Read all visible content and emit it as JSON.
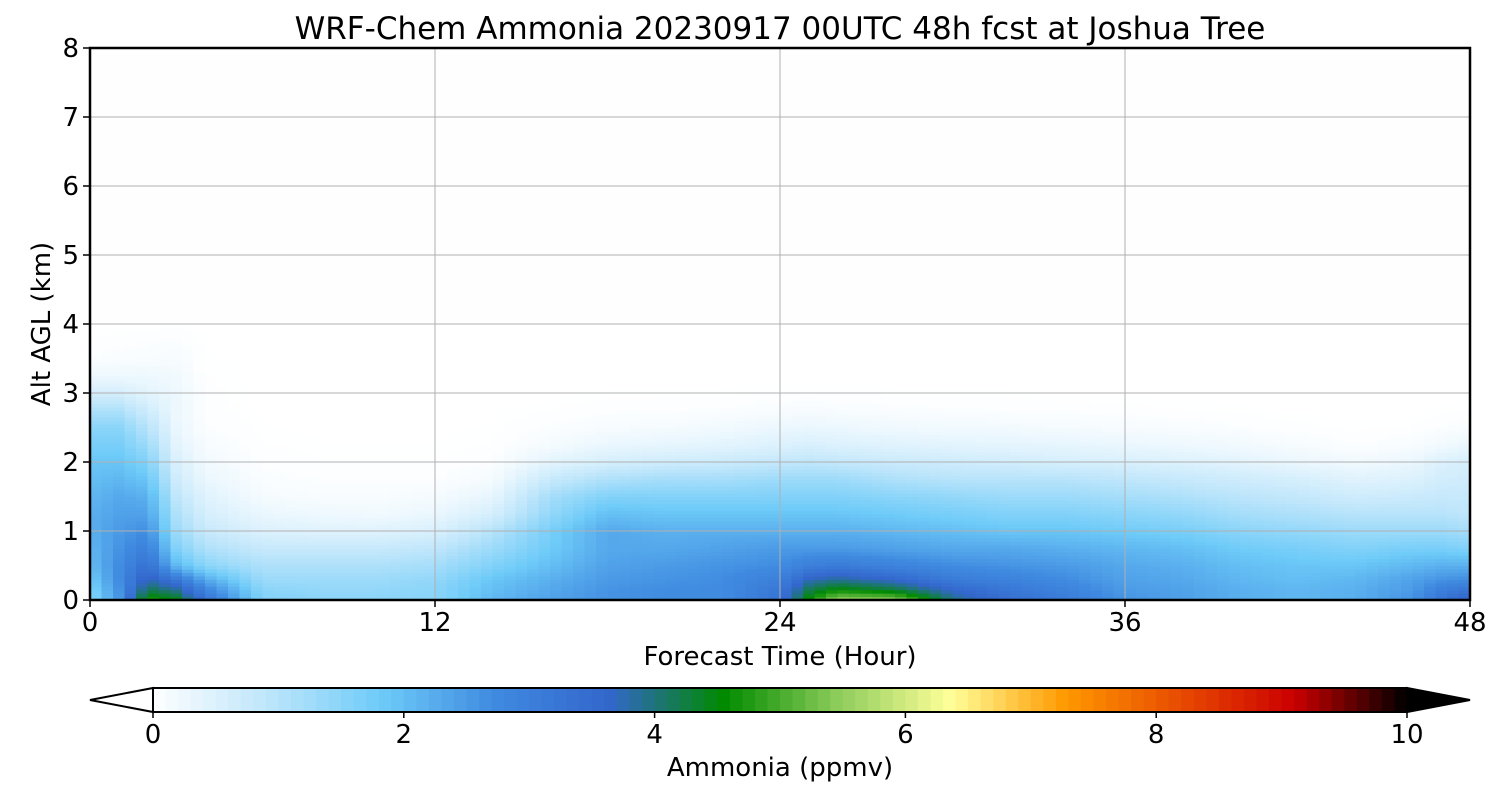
{
  "chart_data": {
    "type": "heatmap",
    "title": "WRF-Chem Ammonia  20230917 00UTC 48h fcst at Joshua Tree",
    "xlabel": "Forecast Time (Hour)",
    "ylabel": "Alt AGL (km)",
    "xlim": [
      0,
      48
    ],
    "ylim": [
      0,
      8
    ],
    "x_ticks": [
      0,
      12,
      24,
      36,
      48
    ],
    "y_ticks": [
      0,
      1,
      2,
      3,
      4,
      5,
      6,
      7,
      8
    ],
    "grid": true,
    "x": [
      0,
      1,
      2,
      3,
      4,
      6,
      8,
      10,
      12,
      14,
      16,
      18,
      20,
      22,
      24,
      25,
      26,
      28,
      30,
      32,
      34,
      36,
      38,
      40,
      42,
      44,
      46,
      47,
      48
    ],
    "y": [
      0,
      0.15,
      0.3,
      0.5,
      0.75,
      1.0,
      1.25,
      1.5,
      1.75,
      2.0,
      2.25,
      2.5,
      2.75,
      3.0,
      3.25,
      3.5,
      4.0,
      8.0
    ],
    "z": [
      [
        1.5,
        2.5,
        4.8,
        4.5,
        3.4,
        1.6,
        1.5,
        1.5,
        1.5,
        2.1,
        2.4,
        2.6,
        2.7,
        2.7,
        3.3,
        4.6,
        5.6,
        5.5,
        4.0,
        3.4,
        3.1,
        2.6,
        2.4,
        2.2,
        2.1,
        2.2,
        2.6,
        3.3,
        3.8
      ],
      [
        1.6,
        2.6,
        4.2,
        3.9,
        2.9,
        1.5,
        1.4,
        1.4,
        1.5,
        2.0,
        2.3,
        2.6,
        2.7,
        2.7,
        3.2,
        4.2,
        4.6,
        4.3,
        3.6,
        3.2,
        2.9,
        2.5,
        2.4,
        2.2,
        2.1,
        2.2,
        2.5,
        3.0,
        3.3
      ],
      [
        1.8,
        2.7,
        3.8,
        3.2,
        2.3,
        1.3,
        1.3,
        1.3,
        1.4,
        1.9,
        2.2,
        2.5,
        2.6,
        2.7,
        3.0,
        3.7,
        3.9,
        3.6,
        3.1,
        2.9,
        2.7,
        2.4,
        2.3,
        2.1,
        2.0,
        2.1,
        2.4,
        2.6,
        2.7
      ],
      [
        2.0,
        2.7,
        3.4,
        2.1,
        1.5,
        1.1,
        1.1,
        1.1,
        1.2,
        1.6,
        2.0,
        2.4,
        2.5,
        2.6,
        2.7,
        3.0,
        3.1,
        2.9,
        2.7,
        2.6,
        2.5,
        2.3,
        2.2,
        2.0,
        1.9,
        1.9,
        2.1,
        2.2,
        2.2
      ],
      [
        2.1,
        2.6,
        3.0,
        1.6,
        1.1,
        0.8,
        0.8,
        0.8,
        0.9,
        1.3,
        1.8,
        2.3,
        2.3,
        2.4,
        2.5,
        2.5,
        2.5,
        2.4,
        2.3,
        2.3,
        2.2,
        2.1,
        2.0,
        1.8,
        1.7,
        1.6,
        1.7,
        1.7,
        1.6
      ],
      [
        2.2,
        2.5,
        2.7,
        1.3,
        0.8,
        0.5,
        0.45,
        0.45,
        0.55,
        1.0,
        1.7,
        2.3,
        2.2,
        2.2,
        2.2,
        2.2,
        2.2,
        2.1,
        2.0,
        1.9,
        1.9,
        1.8,
        1.7,
        1.5,
        1.4,
        1.3,
        1.3,
        1.3,
        1.2
      ],
      [
        2.2,
        2.4,
        2.4,
        1.1,
        0.6,
        0.3,
        0.25,
        0.2,
        0.3,
        0.6,
        1.4,
        2.0,
        1.9,
        1.9,
        1.9,
        1.9,
        1.9,
        1.8,
        1.7,
        1.6,
        1.6,
        1.5,
        1.4,
        1.2,
        1.1,
        1.0,
        1.0,
        1.0,
        0.9
      ],
      [
        2.1,
        2.3,
        2.2,
        0.9,
        0.45,
        0.15,
        0.1,
        0.1,
        0.15,
        0.35,
        1.2,
        1.6,
        1.6,
        1.6,
        1.6,
        1.6,
        1.6,
        1.5,
        1.4,
        1.3,
        1.3,
        1.2,
        1.1,
        0.95,
        0.85,
        0.7,
        0.75,
        0.8,
        0.8
      ],
      [
        2.0,
        2.1,
        1.9,
        0.7,
        0.3,
        0.08,
        0.05,
        0.05,
        0.05,
        0.15,
        0.8,
        1.1,
        1.2,
        1.2,
        1.3,
        1.3,
        1.3,
        1.1,
        1.0,
        1.0,
        1.0,
        0.9,
        0.8,
        0.7,
        0.6,
        0.45,
        0.5,
        0.65,
        0.7
      ],
      [
        1.9,
        1.9,
        1.6,
        0.55,
        0.2,
        0.04,
        0.02,
        0.02,
        0.02,
        0.05,
        0.4,
        0.6,
        0.7,
        0.75,
        0.85,
        0.9,
        0.85,
        0.75,
        0.7,
        0.65,
        0.6,
        0.55,
        0.5,
        0.4,
        0.3,
        0.2,
        0.3,
        0.5,
        0.6
      ],
      [
        1.7,
        1.7,
        1.3,
        0.4,
        0.12,
        0.02,
        0.01,
        0.01,
        0.01,
        0.02,
        0.15,
        0.3,
        0.35,
        0.4,
        0.5,
        0.55,
        0.5,
        0.45,
        0.4,
        0.38,
        0.35,
        0.3,
        0.25,
        0.2,
        0.12,
        0.05,
        0.1,
        0.2,
        0.3
      ],
      [
        1.5,
        1.5,
        1.0,
        0.3,
        0.06,
        0.01,
        0.0,
        0.0,
        0.0,
        0.01,
        0.06,
        0.12,
        0.15,
        0.2,
        0.28,
        0.3,
        0.28,
        0.22,
        0.2,
        0.18,
        0.15,
        0.12,
        0.1,
        0.06,
        0.03,
        0.01,
        0.02,
        0.05,
        0.1
      ],
      [
        1.1,
        1.1,
        0.7,
        0.25,
        0.04,
        0.0,
        0.0,
        0.0,
        0.0,
        0.0,
        0.02,
        0.04,
        0.05,
        0.06,
        0.1,
        0.12,
        0.1,
        0.08,
        0.06,
        0.05,
        0.04,
        0.03,
        0.02,
        0.01,
        0.0,
        0.0,
        0.0,
        0.01,
        0.02
      ],
      [
        0.6,
        0.6,
        0.4,
        0.25,
        0.03,
        0.0,
        0.0,
        0.0,
        0.0,
        0.0,
        0.0,
        0.01,
        0.01,
        0.01,
        0.02,
        0.02,
        0.02,
        0.01,
        0.01,
        0.01,
        0.0,
        0.0,
        0.0,
        0.0,
        0.0,
        0.0,
        0.0,
        0.0,
        0.0
      ],
      [
        0.25,
        0.25,
        0.25,
        0.2,
        0.02,
        0.0,
        0.0,
        0.0,
        0.0,
        0.0,
        0.0,
        0.0,
        0.0,
        0.0,
        0.0,
        0.0,
        0.0,
        0.0,
        0.0,
        0.0,
        0.0,
        0.0,
        0.0,
        0.0,
        0.0,
        0.0,
        0.0,
        0.0,
        0.0
      ],
      [
        0.05,
        0.08,
        0.1,
        0.12,
        0.01,
        0.0,
        0.0,
        0.0,
        0.0,
        0.0,
        0.0,
        0.0,
        0.0,
        0.0,
        0.0,
        0.0,
        0.0,
        0.0,
        0.0,
        0.0,
        0.0,
        0.0,
        0.0,
        0.0,
        0.0,
        0.0,
        0.0,
        0.0,
        0.0
      ],
      [
        0.0,
        0.0,
        0.0,
        0.01,
        0.0,
        0.0,
        0.0,
        0.0,
        0.0,
        0.0,
        0.0,
        0.0,
        0.0,
        0.0,
        0.0,
        0.0,
        0.0,
        0.0,
        0.0,
        0.0,
        0.0,
        0.0,
        0.0,
        0.0,
        0.0,
        0.0,
        0.0,
        0.0,
        0.0
      ],
      [
        0.0,
        0.0,
        0.0,
        0.0,
        0.0,
        0.0,
        0.0,
        0.0,
        0.0,
        0.0,
        0.0,
        0.0,
        0.0,
        0.0,
        0.0,
        0.0,
        0.0,
        0.0,
        0.0,
        0.0,
        0.0,
        0.0,
        0.0,
        0.0,
        0.0,
        0.0,
        0.0,
        0.0,
        0.0
      ]
    ],
    "colorbar": {
      "label": "Ammonia  (ppmv)",
      "range": [
        0,
        10
      ],
      "ticks": [
        0,
        2,
        4,
        6,
        8,
        10
      ],
      "extend": "both",
      "orientation": "horizontal",
      "placement": "bottom",
      "colors": [
        "#ffffff",
        "#bfe6fb",
        "#6ecbf8",
        "#3f8ae0",
        "#3366cc",
        "#008a00",
        "#8ccc5a",
        "#ffff99",
        "#ff9900",
        "#e84c00",
        "#cc0000",
        "#000000"
      ]
    }
  }
}
